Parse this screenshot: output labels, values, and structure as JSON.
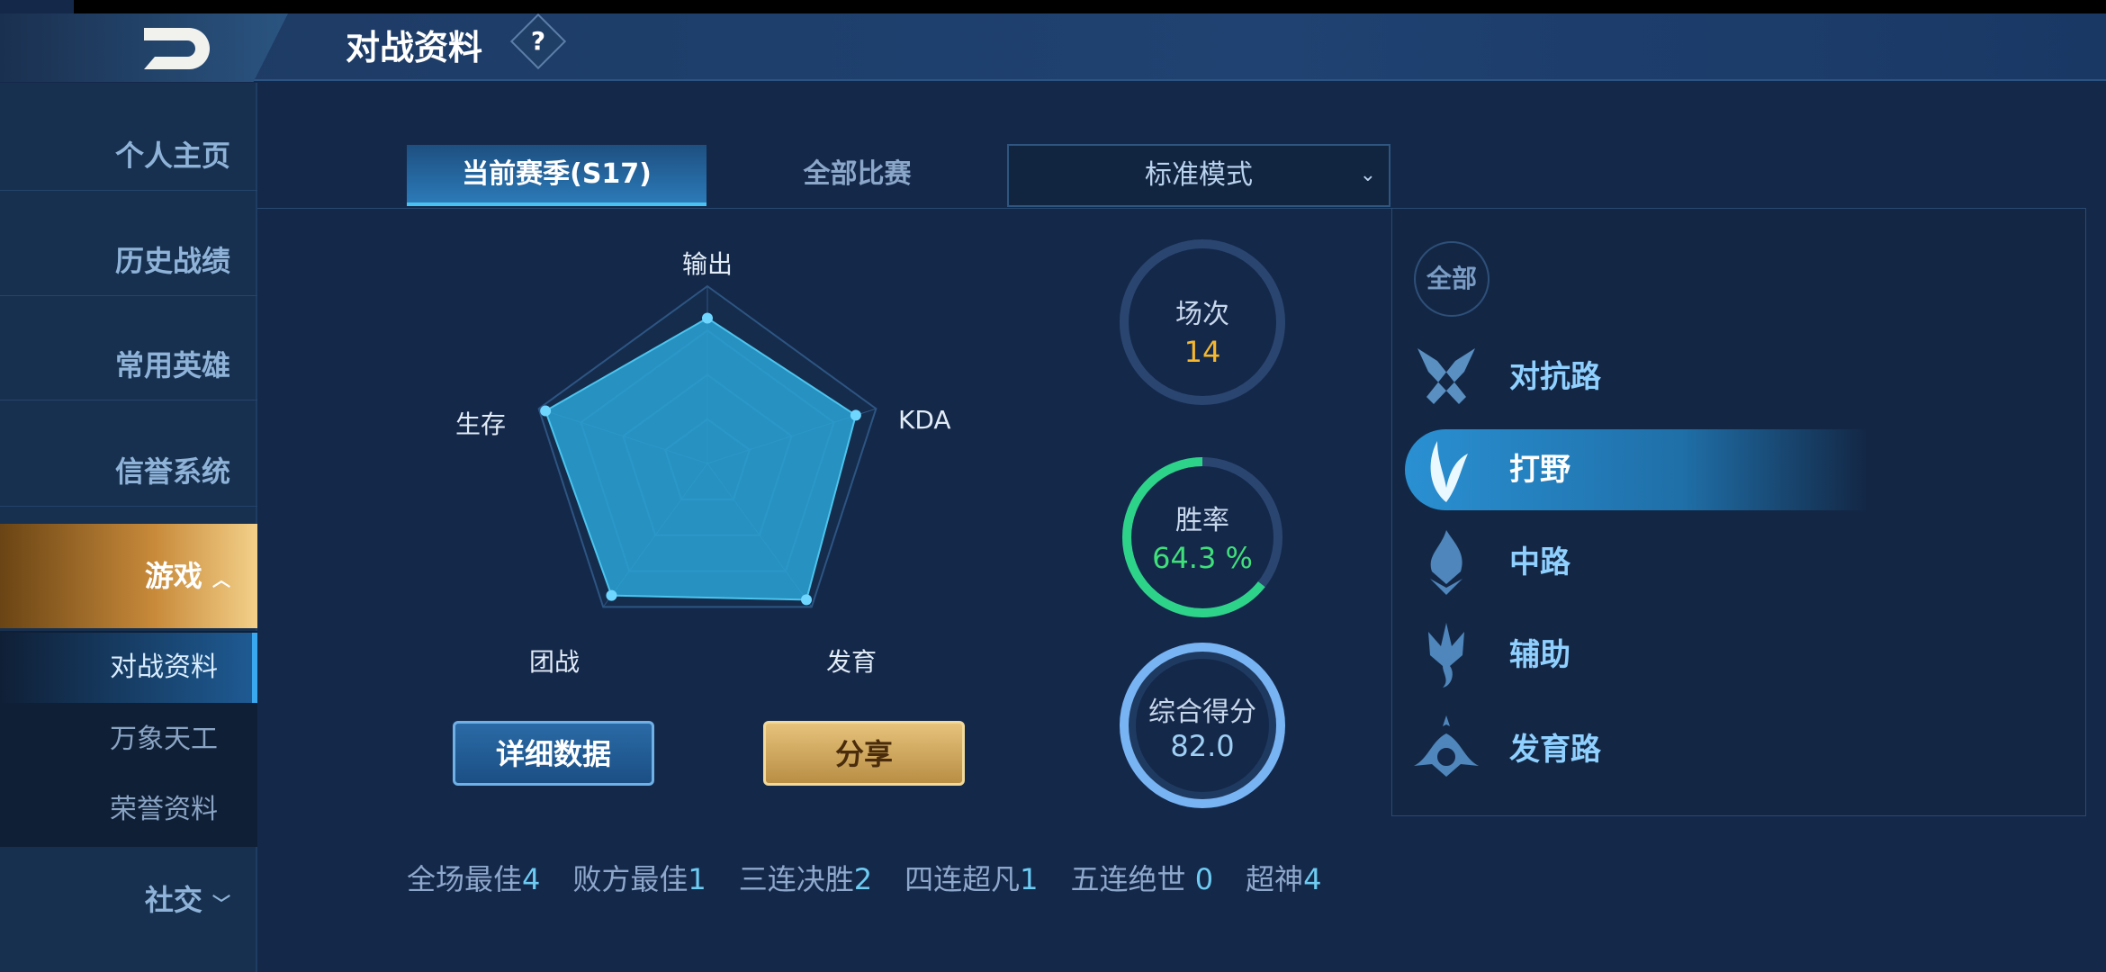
{
  "header": {
    "title": "对战资料",
    "help_icon": "?"
  },
  "sidebar": {
    "items": [
      {
        "label": "个人主页"
      },
      {
        "label": "历史战绩"
      },
      {
        "label": "常用英雄"
      },
      {
        "label": "信誉系统"
      },
      {
        "label": "游戏",
        "expanded": true
      },
      {
        "label": "社交"
      }
    ],
    "sub_items": [
      {
        "label": "对战资料",
        "active": true
      },
      {
        "label": "万象天工"
      },
      {
        "label": "荣誉资料"
      }
    ]
  },
  "tabs": [
    {
      "label": "当前赛季(S17)",
      "active": true
    },
    {
      "label": "全部比赛"
    }
  ],
  "mode_select": {
    "value": "标准模式"
  },
  "radar": {
    "axes": [
      "输出",
      "KDA",
      "发育",
      "团战",
      "生存"
    ],
    "values": [
      0.82,
      0.88,
      0.95,
      0.92,
      0.96
    ]
  },
  "buttons": {
    "detail": "详细数据",
    "share": "分享"
  },
  "stats": {
    "matches_label": "场次",
    "matches": "14",
    "winrate_label": "胜率",
    "winrate": "64.3 %",
    "winrate_value": 64.3,
    "score_label": "综合得分",
    "score": "82.0"
  },
  "lanes": {
    "all": "全部",
    "items": [
      {
        "label": "对抗路",
        "icon": "crossed-swords-icon"
      },
      {
        "label": "打野",
        "icon": "leaf-icon",
        "active": true
      },
      {
        "label": "中路",
        "icon": "flame-icon"
      },
      {
        "label": "辅助",
        "icon": "trident-icon"
      },
      {
        "label": "发育路",
        "icon": "bow-icon"
      }
    ]
  },
  "achievements": [
    {
      "label": "全场最佳",
      "value": "4"
    },
    {
      "label": "败方最佳",
      "value": "1"
    },
    {
      "label": "三连决胜",
      "value": "2"
    },
    {
      "label": "四连超凡",
      "value": "1"
    },
    {
      "label": "五连绝世 ",
      "value": "0"
    },
    {
      "label": "超神",
      "value": "4"
    }
  ],
  "colors": {
    "winrate": "#2ed38a",
    "matches": "#f5b82e",
    "score": "#78b4f4",
    "accent": "#48c2f2"
  }
}
